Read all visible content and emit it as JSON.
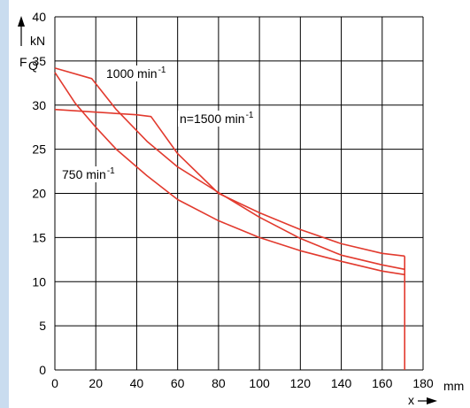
{
  "chart_data": {
    "type": "line",
    "title": "",
    "ylabel": "F",
    "ylabel_subscript": "Q",
    "yunit": "kN",
    "xlabel": "x",
    "xunit": "mm",
    "xlim": [
      0,
      180
    ],
    "ylim": [
      0,
      40
    ],
    "xticks": [
      0,
      20,
      40,
      60,
      80,
      100,
      120,
      140,
      160,
      180
    ],
    "yticks": [
      0,
      5,
      10,
      15,
      20,
      25,
      30,
      35,
      40
    ],
    "grid": true,
    "line_color": "#e23a2e",
    "series": [
      {
        "name": "n=1500 min",
        "name_sup": "-1",
        "x": [
          0,
          20,
          40,
          47,
          60,
          80,
          100,
          120,
          140,
          160,
          171
        ],
        "y": [
          29.5,
          29.2,
          28.9,
          28.7,
          24.5,
          20.0,
          17.8,
          15.9,
          14.3,
          13.2,
          12.9
        ]
      },
      {
        "name": "1000 min",
        "name_sup": "-1",
        "x": [
          0,
          18,
          30,
          45,
          60,
          80,
          100,
          120,
          140,
          160,
          171
        ],
        "y": [
          34.2,
          33.0,
          29.5,
          25.9,
          23.0,
          20.1,
          17.3,
          14.9,
          13.0,
          11.9,
          11.4
        ]
      },
      {
        "name": "750 min",
        "name_sup": "-1",
        "x": [
          0,
          10,
          20,
          30,
          45,
          60,
          80,
          100,
          120,
          140,
          160,
          171
        ],
        "y": [
          33.7,
          30.2,
          27.5,
          25.0,
          22.0,
          19.3,
          16.9,
          15.0,
          13.5,
          12.3,
          11.2,
          10.8
        ]
      }
    ],
    "terminal_x": 171,
    "terminal_y_top": 12.9
  }
}
